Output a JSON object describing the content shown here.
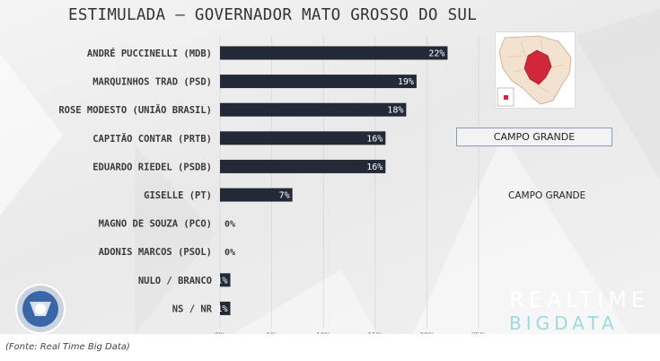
{
  "title": "ESTIMULADA – GOVERNADOR MATO GROSSO DO SUL",
  "source": "(Fonte: Real Time Big Data)",
  "region_box": "CAMPO GRANDE",
  "region_label": "CAMPO GRANDE",
  "logo": {
    "line1": "REALTIME",
    "line2": "BIGDATA"
  },
  "colors": {
    "bar": "#222a38",
    "map_highlight": "#d0283a",
    "map_state": "#f2e2cf"
  },
  "icons": {
    "broadcaster": "record-logo-icon",
    "map": "state-map-icon"
  },
  "chart_data": {
    "type": "bar",
    "orientation": "horizontal",
    "categories": [
      "ANDRÉ PUCCINELLI (MDB)",
      "MARQUINHOS TRAD (PSD)",
      "ROSE MODESTO (UNIÃO BRASIL)",
      "CAPITÃO CONTAR (PRTB)",
      "EDUARDO RIEDEL (PSDB)",
      "GISELLE (PT)",
      "MAGNO DE SOUZA (PCO)",
      "ADONIS MARCOS (PSOL)",
      "NULO / BRANCO",
      "NS / NR"
    ],
    "values": [
      22,
      19,
      18,
      16,
      16,
      7,
      0,
      0,
      1,
      1
    ],
    "value_labels": [
      "22%",
      "19%",
      "18%",
      "16%",
      "16%",
      "7%",
      "0%",
      "0%",
      "1%",
      "1%"
    ],
    "xlim": [
      0,
      25
    ],
    "xticks": [
      "0%",
      "5%",
      "10%",
      "15%",
      "20%",
      "25%"
    ],
    "grid": true
  }
}
